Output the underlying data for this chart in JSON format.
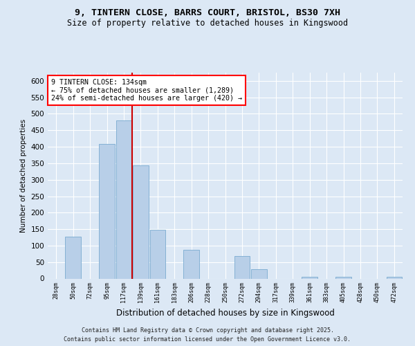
{
  "title1": "9, TINTERN CLOSE, BARRS COURT, BRISTOL, BS30 7XH",
  "title2": "Size of property relative to detached houses in Kingswood",
  "xlabel": "Distribution of detached houses by size in Kingswood",
  "ylabel": "Number of detached properties",
  "categories": [
    "28sqm",
    "50sqm",
    "72sqm",
    "95sqm",
    "117sqm",
    "139sqm",
    "161sqm",
    "183sqm",
    "206sqm",
    "228sqm",
    "250sqm",
    "272sqm",
    "294sqm",
    "317sqm",
    "339sqm",
    "361sqm",
    "383sqm",
    "405sqm",
    "428sqm",
    "450sqm",
    "472sqm"
  ],
  "values": [
    0,
    128,
    0,
    408,
    481,
    343,
    148,
    0,
    88,
    0,
    0,
    68,
    28,
    0,
    0,
    5,
    0,
    5,
    0,
    0,
    5
  ],
  "bar_color": "#b8cfe8",
  "bar_edge_color": "#7aaad0",
  "vline_color": "#cc0000",
  "annotation_title": "9 TINTERN CLOSE: 134sqm",
  "annotation_line1": "← 75% of detached houses are smaller (1,289)",
  "annotation_line2": "24% of semi-detached houses are larger (420) →",
  "ylim": [
    0,
    625
  ],
  "yticks": [
    0,
    50,
    100,
    150,
    200,
    250,
    300,
    350,
    400,
    450,
    500,
    550,
    600
  ],
  "footer1": "Contains HM Land Registry data © Crown copyright and database right 2025.",
  "footer2": "Contains public sector information licensed under the Open Government Licence v3.0.",
  "bg_color": "#dce8f5",
  "plot_bg_color": "#dce8f5",
  "vline_x_idx": 5
}
